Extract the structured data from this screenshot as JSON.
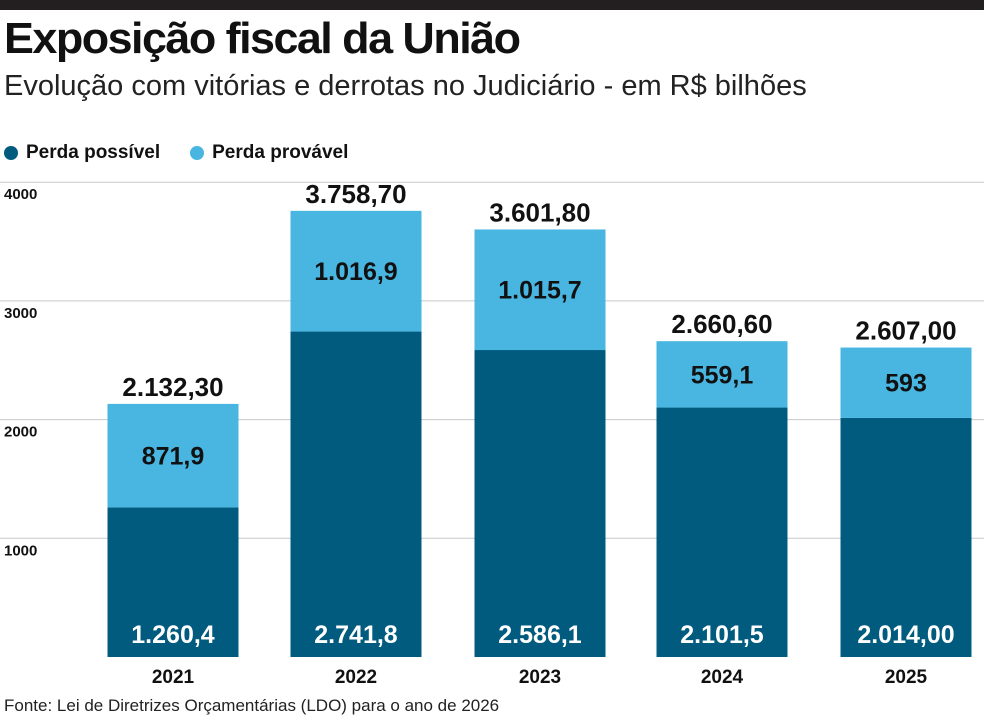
{
  "title": "Exposição fiscal da União",
  "subtitle": "Evolução com vitórias e derrotas no Judiciário - em R$ bilhões",
  "source": "Fonte: Lei de Diretrizes Orçamentárias (LDO) para o ano de 2026",
  "colors": {
    "perda_possivel": "#005b7f",
    "perda_provavel": "#48b6e1",
    "grid": "#c8c8c8",
    "text": "#111111",
    "inner_label_dark": "#111111",
    "inner_label_light": "#ffffff"
  },
  "chart_data": {
    "type": "bar",
    "stacked": true,
    "title": "Exposição fiscal da União",
    "subtitle": "Evolução com vitórias e derrotas no Judiciário - em R$ bilhões",
    "categories": [
      "2021",
      "2022",
      "2023",
      "2024",
      "2025"
    ],
    "series": [
      {
        "name": "Perda possível",
        "values": [
          1260.4,
          2741.8,
          2586.1,
          2101.5,
          2014.0
        ],
        "labels": [
          "1.260,4",
          "2.741,8",
          "2.586,1",
          "2.101,5",
          "2.014,00"
        ]
      },
      {
        "name": "Perda provável",
        "values": [
          871.9,
          1016.9,
          1015.7,
          559.1,
          593
        ],
        "labels": [
          "871,9",
          "1.016,9",
          "1.015,7",
          "559,1",
          "593"
        ]
      }
    ],
    "totals": [
      2132.3,
      3758.7,
      3601.8,
      2660.6,
      2607.0
    ],
    "total_labels": [
      "2.132,30",
      "3.758,70",
      "3.601,80",
      "2.660,60",
      "2.607,00"
    ],
    "yticks": [
      1000,
      2000,
      3000,
      4000
    ],
    "ytick_labels": [
      "1000",
      "2000",
      "3000",
      "4000"
    ],
    "ylim": [
      0,
      4000
    ],
    "grid": true,
    "legend_position": "top-left",
    "xlabel": "",
    "ylabel": ""
  }
}
